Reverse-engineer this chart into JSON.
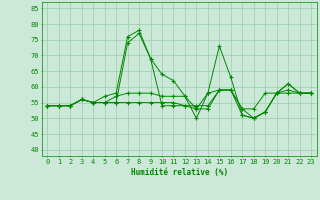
{
  "xlabel": "Humidité relative (%)",
  "background_color": "#cce8d8",
  "grid_color": "#99ccaa",
  "line_color": "#008800",
  "xlim": [
    -0.5,
    23.5
  ],
  "ylim": [
    38,
    87
  ],
  "yticks": [
    40,
    45,
    50,
    55,
    60,
    65,
    70,
    75,
    80,
    85
  ],
  "xticks": [
    0,
    1,
    2,
    3,
    4,
    5,
    6,
    7,
    8,
    9,
    10,
    11,
    12,
    13,
    14,
    15,
    16,
    17,
    18,
    19,
    20,
    21,
    22,
    23
  ],
  "series": [
    [
      54,
      54,
      54,
      56,
      55,
      57,
      58,
      76,
      78,
      69,
      64,
      62,
      57,
      50,
      58,
      73,
      63,
      51,
      50,
      52,
      58,
      61,
      58,
      58
    ],
    [
      54,
      54,
      54,
      56,
      55,
      55,
      55,
      74,
      77,
      69,
      54,
      54,
      54,
      53,
      53,
      59,
      59,
      51,
      50,
      52,
      58,
      61,
      58,
      58
    ],
    [
      54,
      54,
      54,
      56,
      55,
      55,
      57,
      58,
      58,
      58,
      57,
      57,
      57,
      53,
      58,
      59,
      59,
      53,
      53,
      58,
      58,
      59,
      58,
      58
    ],
    [
      54,
      54,
      54,
      56,
      55,
      55,
      55,
      55,
      55,
      55,
      55,
      55,
      54,
      54,
      54,
      59,
      59,
      53,
      50,
      52,
      58,
      58,
      58,
      58
    ]
  ]
}
